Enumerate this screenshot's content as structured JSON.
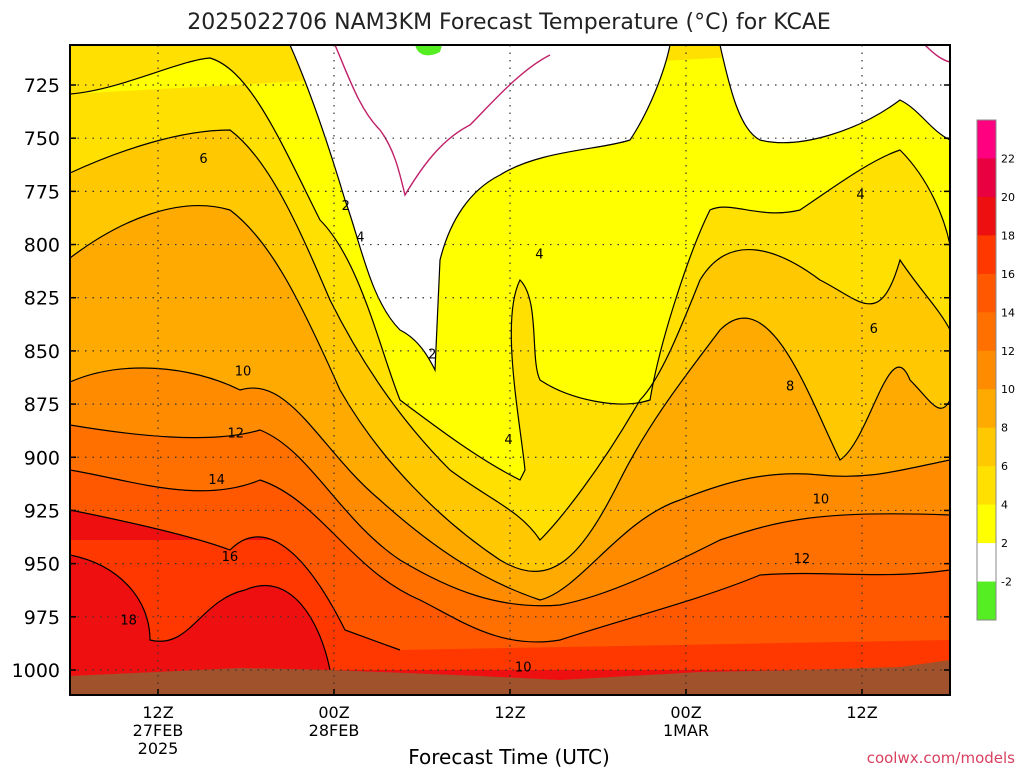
{
  "chart_data": {
    "type": "heatmap",
    "title": "2025022706 NAM3KM Forecast Temperature (°C) for KCAE",
    "xlabel": "Forecast Time (UTC)",
    "ylabel": "",
    "credit": "coolwx.com/models",
    "y_scale": "pressure (hPa), inverted",
    "y_ticks": [
      725,
      750,
      775,
      800,
      825,
      850,
      875,
      900,
      925,
      950,
      975,
      1000
    ],
    "ylim": [
      1010,
      710
    ],
    "x_ticks": [
      {
        "h": 12,
        "l1": "12Z",
        "l2": "27FEB",
        "l3": "2025"
      },
      {
        "h": 24,
        "l1": "00Z",
        "l2": "28FEB",
        "l3": ""
      },
      {
        "h": 36,
        "l1": "12Z",
        "l2": "",
        "l3": ""
      },
      {
        "h": 48,
        "l1": "00Z",
        "l2": "1MAR",
        "l3": ""
      },
      {
        "h": 60,
        "l1": "12Z",
        "l2": "",
        "l3": ""
      }
    ],
    "xlim": [
      6,
      66
    ],
    "grid": true,
    "colorbar": {
      "labels": [
        "-2",
        "2",
        "4",
        "6",
        "8",
        "10",
        "12",
        "14",
        "16",
        "18",
        "20",
        "22"
      ],
      "colors": [
        "#55ee22",
        "#ffffff",
        "#ffff00",
        "#ffe000",
        "#ffc800",
        "#ffaa00",
        "#ff8c00",
        "#ff7000",
        "#ff5800",
        "#ff3800",
        "#ee1010",
        "#e80040",
        "#ff0080"
      ]
    },
    "contour_labels": [
      {
        "text": "2",
        "h": 24.8,
        "p": 782
      },
      {
        "text": "4",
        "h": 25.8,
        "p": 797
      },
      {
        "text": "2",
        "h": 30.7,
        "p": 852
      },
      {
        "text": "4",
        "h": 38.0,
        "p": 805
      },
      {
        "text": "4",
        "h": 35.9,
        "p": 892
      },
      {
        "text": "4",
        "h": 59.9,
        "p": 777
      },
      {
        "text": "6",
        "h": 15.1,
        "p": 760
      },
      {
        "text": "6",
        "h": 60.8,
        "p": 840
      },
      {
        "text": "8",
        "h": 55.1,
        "p": 867
      },
      {
        "text": "10",
        "h": 17.8,
        "p": 860
      },
      {
        "text": "10",
        "h": 57.2,
        "p": 920
      },
      {
        "text": "10",
        "h": 36.9,
        "p": 999
      },
      {
        "text": "12",
        "h": 17.3,
        "p": 889
      },
      {
        "text": "12",
        "h": 55.9,
        "p": 948
      },
      {
        "text": "14",
        "h": 16.0,
        "p": 911
      },
      {
        "text": "16",
        "h": 16.9,
        "p": 947
      },
      {
        "text": "18",
        "h": 10.0,
        "p": 977
      }
    ]
  }
}
